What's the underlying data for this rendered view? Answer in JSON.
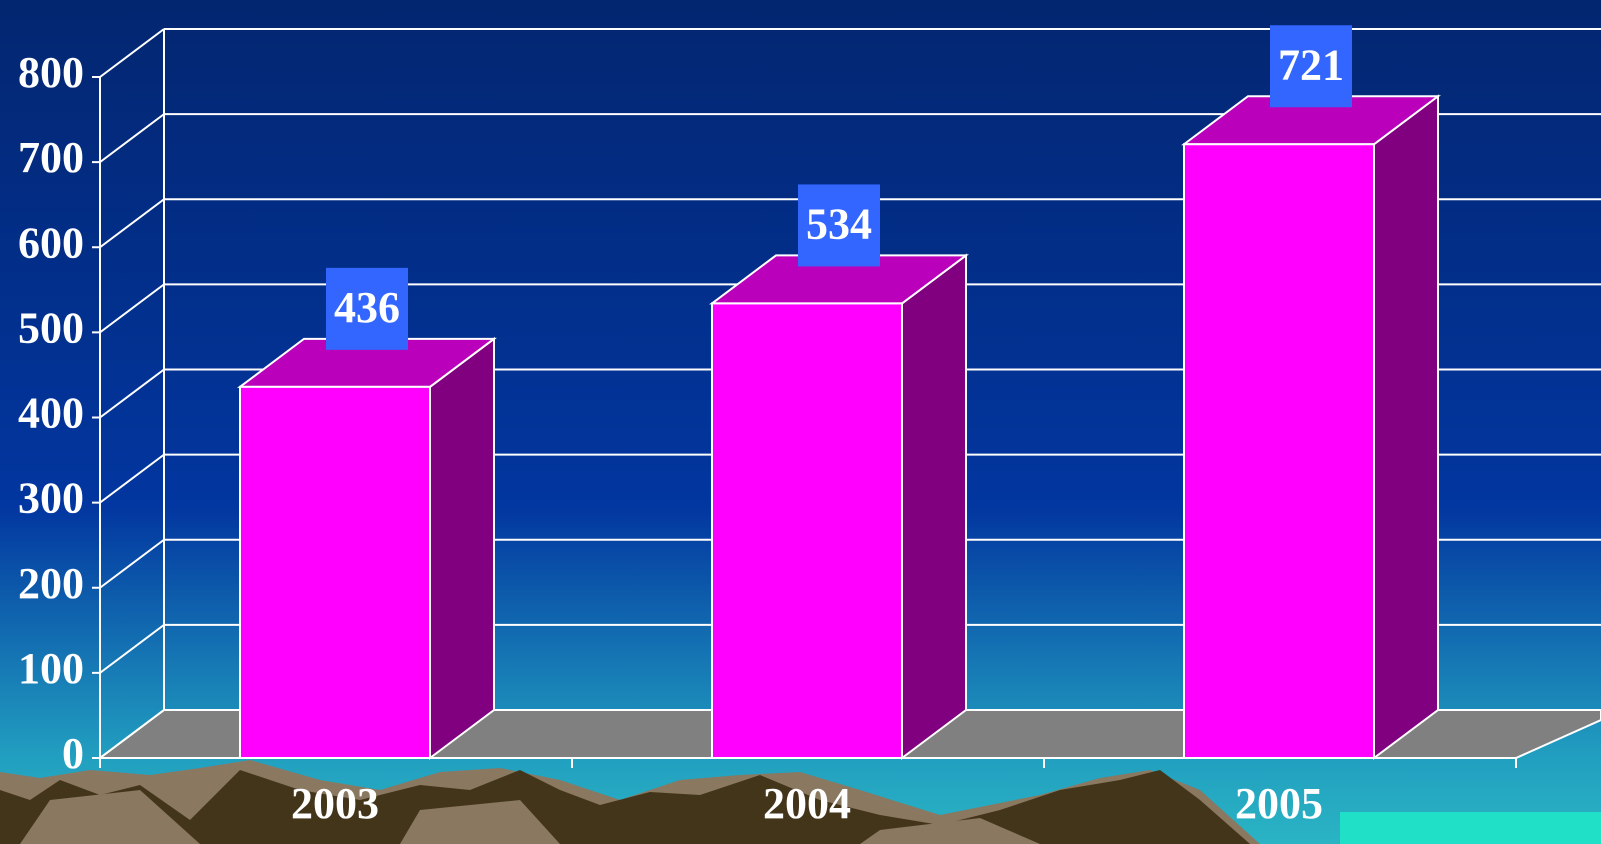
{
  "chart_data": {
    "type": "bar3d",
    "categories": [
      "2003",
      "2004",
      "2005"
    ],
    "values": [
      436,
      534,
      721
    ],
    "color": "#ff00ff",
    "ylim": [
      0,
      800
    ],
    "yticks": [
      0,
      100,
      200,
      300,
      400,
      500,
      600,
      700,
      800
    ],
    "grid": true
  }
}
